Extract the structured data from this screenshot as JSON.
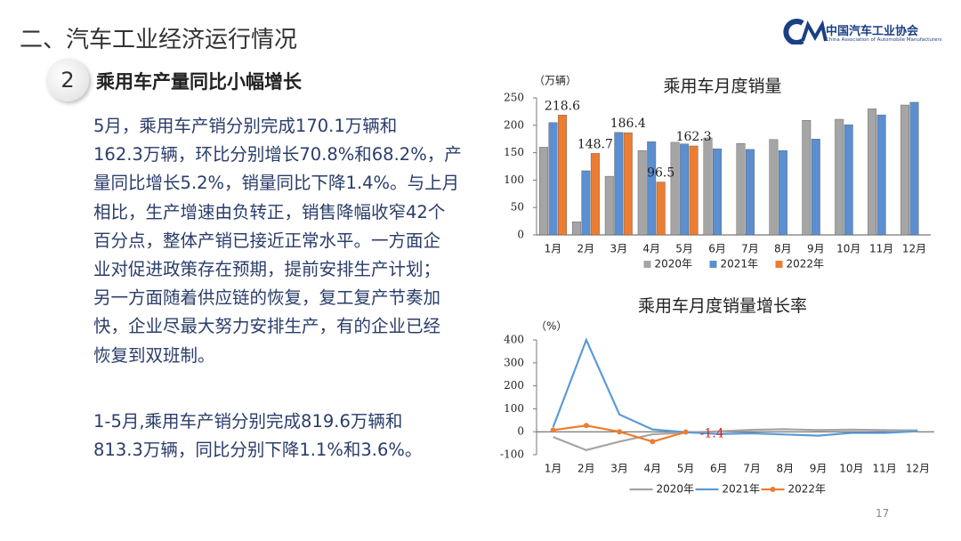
{
  "header": {
    "title": "二、汽车工业经济运行情况",
    "logo_cn": "中国汽车工业协会",
    "logo_en": "China Association of Automobile Manufacturers"
  },
  "section": {
    "number": "2",
    "heading": "乘用车产量同比小幅增长"
  },
  "paragraphs": [
    [
      "5月，乘用车产销分别完成170.1万辆和",
      "162.3万辆，环比分别增长70.8%和68.2%，产",
      "量同比增长5.2%，销量同比下降1.4%。与上月",
      "相比，生产增速由负转正，销售降幅收窄42个",
      "百分点，整体产销已接近正常水平。一方面企",
      "业对促进政策存在预期，提前安排生产计划；",
      "另一方面随着供应链的恢复，复工复产节奏加",
      "快，企业尽最大努力安排生产，有的企业已经",
      "恢复到双班制。"
    ],
    [
      "1-5月,乘用车产销分别完成819.6万辆和",
      "813.3万辆，同比分别下降1.1%和3.6%。"
    ]
  ],
  "page_number": "17",
  "chart_data": [
    {
      "type": "bar",
      "title": "乘用车月度销量",
      "y_label": "（万辆）",
      "categories": [
        "1月",
        "2月",
        "3月",
        "4月",
        "5月",
        "6月",
        "7月",
        "8月",
        "9月",
        "10月",
        "11月",
        "12月"
      ],
      "series": [
        {
          "name": "2020年",
          "color": "#a5a5a5",
          "values": [
            160,
            24,
            107,
            154,
            169,
            177,
            167,
            174,
            209,
            211,
            230,
            237
          ]
        },
        {
          "name": "2021年",
          "color": "#5b8fd0",
          "values": [
            205,
            117,
            187,
            170,
            166,
            157,
            156,
            154,
            175,
            201,
            219,
            242
          ]
        },
        {
          "name": "2022年",
          "color": "#ed7d31",
          "values": [
            218.6,
            148.7,
            186.4,
            96.5,
            162.3,
            null,
            null,
            null,
            null,
            null,
            null,
            null
          ],
          "data_labels": true
        }
      ],
      "ylim": [
        0,
        250
      ],
      "yticks": [
        0,
        50,
        100,
        150,
        200,
        250
      ],
      "legend": "bottom"
    },
    {
      "type": "line",
      "title": "乘用车月度销量增长率",
      "y_label": "（%）",
      "categories": [
        "1月",
        "2月",
        "3月",
        "4月",
        "5月",
        "6月",
        "7月",
        "8月",
        "9月",
        "10月",
        "11月",
        "12月"
      ],
      "series": [
        {
          "name": "2020年",
          "color": "#a5a5a5",
          "values": [
            -23,
            -80,
            -43,
            -11,
            -4,
            2,
            8,
            11,
            7,
            9,
            7,
            6
          ]
        },
        {
          "name": "2021年",
          "color": "#5b9bd5",
          "values": [
            20,
            400,
            75,
            10,
            -2,
            -10,
            -7,
            -12,
            -17,
            -5,
            -5,
            2
          ]
        },
        {
          "name": "2022年",
          "color": "#ed7d31",
          "values": [
            7,
            27,
            0,
            -43,
            -1.4,
            null,
            null,
            null,
            null,
            null,
            null,
            null
          ],
          "markers": true,
          "value_labels": [
            null,
            null,
            null,
            null,
            "-1.4"
          ],
          "label_color": "#e02020"
        }
      ],
      "ylim": [
        -100,
        400
      ],
      "yticks": [
        -100,
        0,
        100,
        200,
        300,
        400
      ],
      "legend": "bottom"
    }
  ]
}
